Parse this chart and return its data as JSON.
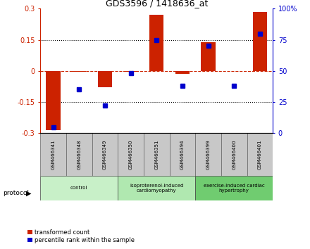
{
  "title": "GDS3596 / 1418636_at",
  "samples": [
    "GSM466341",
    "GSM466348",
    "GSM466349",
    "GSM466350",
    "GSM466351",
    "GSM466394",
    "GSM466399",
    "GSM466400",
    "GSM466401"
  ],
  "transformed_count": [
    -0.285,
    -0.005,
    -0.08,
    -0.005,
    0.27,
    -0.015,
    0.14,
    0.0,
    0.285
  ],
  "percentile_rank": [
    5,
    35,
    22,
    48,
    75,
    38,
    70,
    38,
    80
  ],
  "groups": [
    {
      "label": "control",
      "start": 0,
      "end": 3,
      "color": "#c8f0c8"
    },
    {
      "label": "isoproterenol-induced\ncardiomyopathy",
      "start": 3,
      "end": 6,
      "color": "#b0e8b0"
    },
    {
      "label": "exercise-induced cardiac\nhypertrophy",
      "start": 6,
      "end": 9,
      "color": "#70cc70"
    }
  ],
  "ylim": [
    -0.3,
    0.3
  ],
  "y2lim": [
    0,
    100
  ],
  "yticks_left": [
    -0.3,
    -0.15,
    0,
    0.15,
    0.3
  ],
  "yticks_right": [
    0,
    25,
    50,
    75,
    100
  ],
  "bar_color": "#cc2200",
  "dot_color": "#0000cc",
  "zero_line_color": "#cc2200",
  "bar_width": 0.55,
  "percentile_base": 50,
  "label_color": "#c8c8c8"
}
